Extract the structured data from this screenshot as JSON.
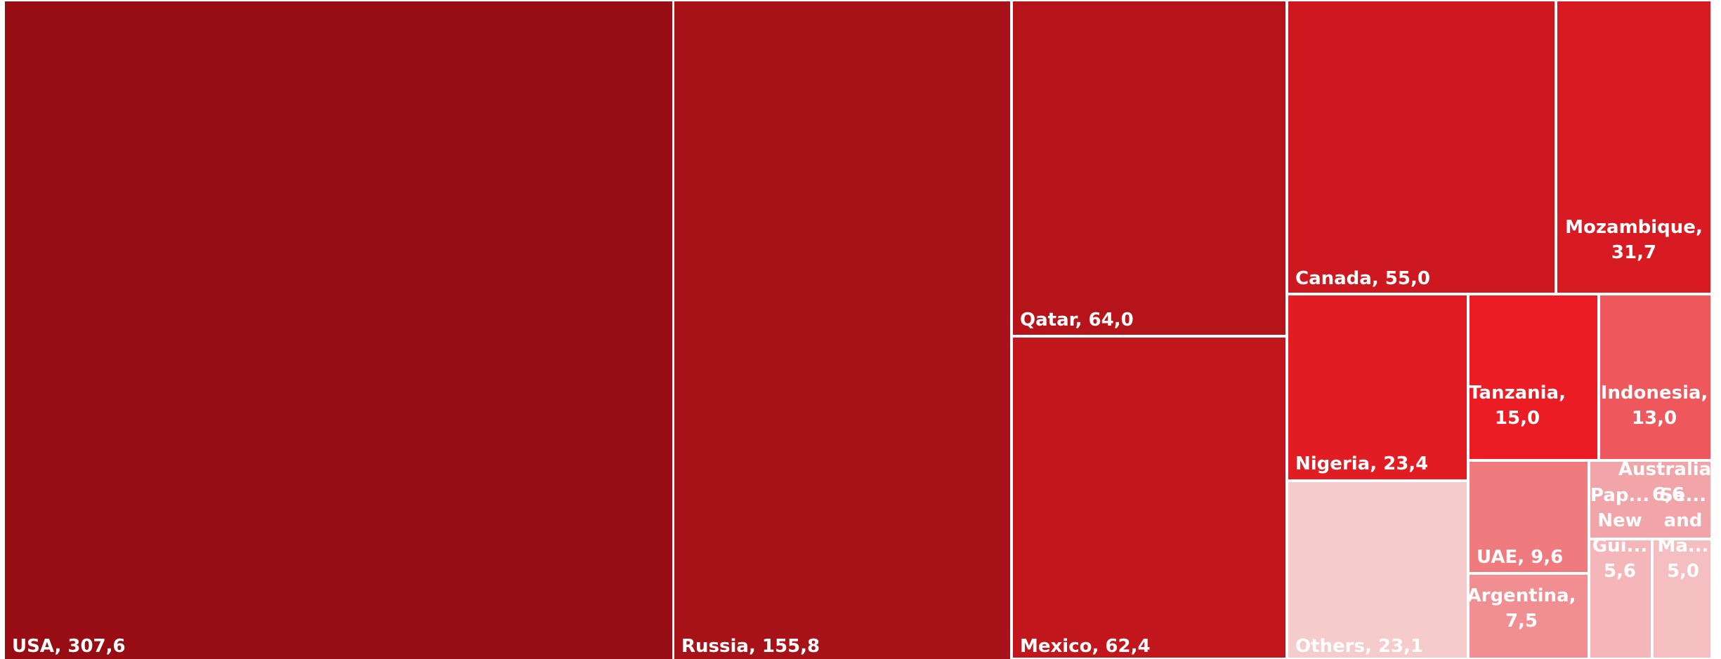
{
  "chart_data": {
    "type": "treemap",
    "title": "",
    "items": [
      {
        "name": "USA",
        "value": 307.6,
        "value_label": "307,6",
        "color": "#970d13"
      },
      {
        "name": "Russia",
        "value": 155.8,
        "value_label": "155,8",
        "color": "#a71118"
      },
      {
        "name": "Qatar",
        "value": 64.0,
        "value_label": "64,0",
        "color": "#b5141a"
      },
      {
        "name": "Mexico",
        "value": 62.4,
        "value_label": "62,4",
        "color": "#c0161c"
      },
      {
        "name": "Canada",
        "value": 55.0,
        "value_label": "55,0",
        "color": "#cc181e"
      },
      {
        "name": "Mozambique",
        "value": 31.7,
        "value_label": "31,7",
        "color": "#d81b22"
      },
      {
        "name": "Nigeria",
        "value": 23.4,
        "value_label": "23,4",
        "color": "#e11c23"
      },
      {
        "name": "Others",
        "value": 23.1,
        "value_label": "23,1",
        "color": "#f5cbcc"
      },
      {
        "name": "Tanzania",
        "value": 15.0,
        "value_label": "15,0",
        "color": "#ec1c24"
      },
      {
        "name": "Indonesia",
        "value": 13.0,
        "value_label": "13,0",
        "color": "#ee585c"
      },
      {
        "name": "UAE",
        "value": 9.6,
        "value_label": "9,6",
        "color": "#ef7b7f"
      },
      {
        "name": "Argentina",
        "value": 7.5,
        "value_label": "7,5",
        "color": "#f08e91"
      },
      {
        "name": "Australia",
        "value": 6.6,
        "value_label": "6,6",
        "color": "#f2a5a8"
      },
      {
        "name": "Papua New Guinea",
        "display_lines": [
          "Pap...",
          "New",
          "Gui...",
          "5,6"
        ],
        "value": 5.6,
        "value_label": "5,6",
        "color": "#f4b6b8"
      },
      {
        "name": "Senegal and Mauritania",
        "display_lines": [
          "Se...",
          "and",
          "Ma...",
          "5,0"
        ],
        "value": 5.0,
        "value_label": "5,0",
        "color": "#f5bfc1"
      }
    ]
  }
}
